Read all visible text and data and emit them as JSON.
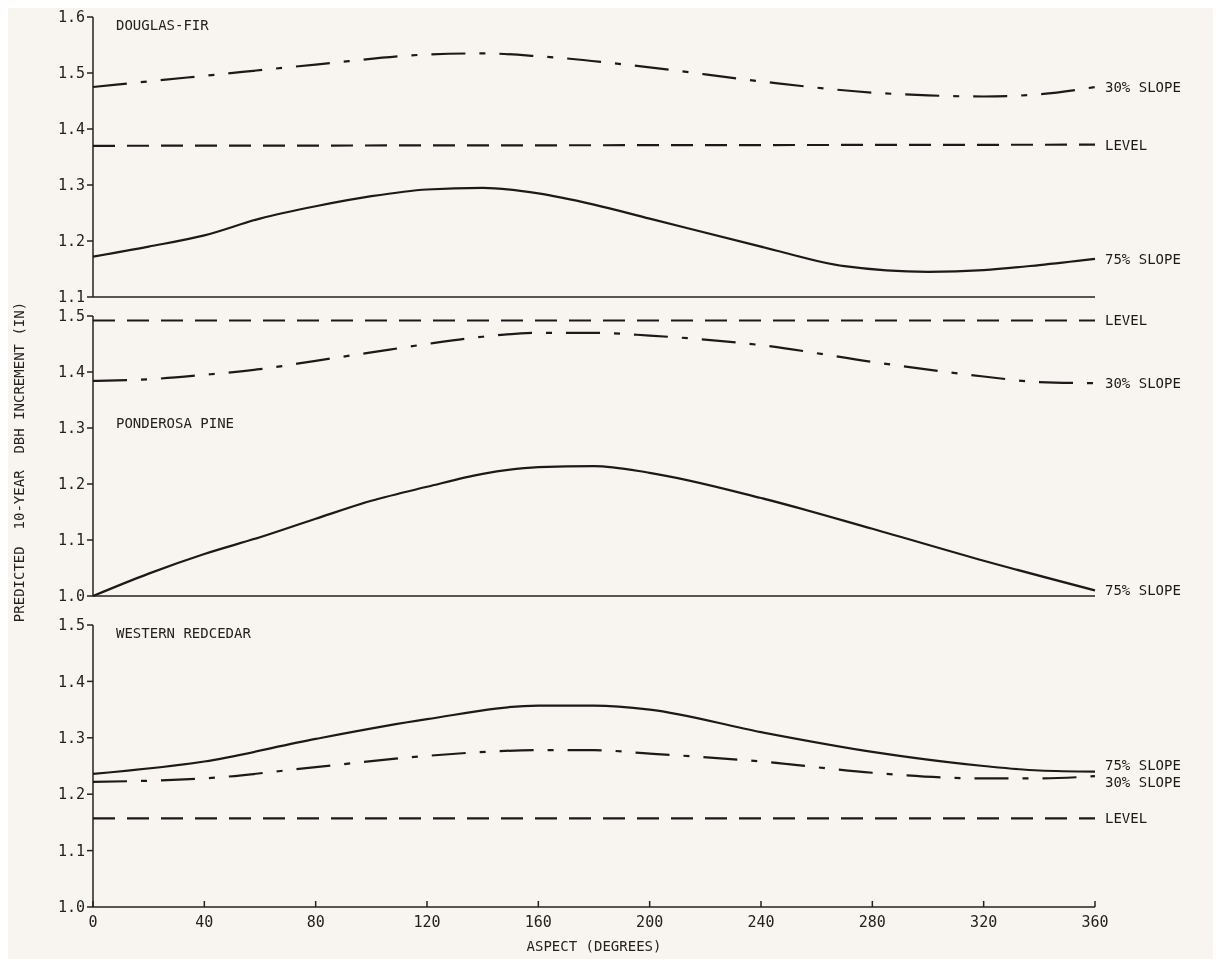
{
  "chart_data": [
    {
      "type": "line",
      "title": "DOUGLAS-FIR",
      "xlim": [
        0,
        360
      ],
      "ylim": [
        1.1,
        1.6
      ],
      "yticks": [
        1.1,
        1.2,
        1.3,
        1.4,
        1.5,
        1.6
      ],
      "xticks": [
        0,
        40,
        80,
        120,
        160,
        200,
        240,
        280,
        320,
        360
      ],
      "tick_labels": "y",
      "legend": false,
      "grid": false,
      "series": [
        {
          "name": "30% SLOPE",
          "color": "#1a1a1a",
          "line_style": "dashdot",
          "x": [
            0,
            40,
            80,
            120,
            140,
            160,
            200,
            240,
            280,
            300,
            320,
            340,
            360
          ],
          "values": [
            1.475,
            1.495,
            1.515,
            1.533,
            1.535,
            1.53,
            1.51,
            1.485,
            1.465,
            1.46,
            1.458,
            1.462,
            1.475
          ]
        },
        {
          "name": "LEVEL",
          "color": "#1a1a1a",
          "line_style": "dashed",
          "x": [
            0,
            360
          ],
          "values": [
            1.37,
            1.372
          ]
        },
        {
          "name": "75% SLOPE",
          "color": "#1a1a1a",
          "line_style": "solid",
          "x": [
            0,
            20,
            40,
            60,
            80,
            100,
            120,
            140,
            160,
            180,
            200,
            240,
            270,
            300,
            320,
            340,
            360
          ],
          "values": [
            1.172,
            1.19,
            1.21,
            1.24,
            1.262,
            1.28,
            1.292,
            1.295,
            1.285,
            1.265,
            1.24,
            1.19,
            1.155,
            1.145,
            1.148,
            1.157,
            1.168
          ]
        }
      ]
    },
    {
      "type": "line",
      "title": "PONDEROSA PINE",
      "ylabel": "PREDICTED  10-YEAR  DBH INCREMENT (IN)",
      "xlim": [
        0,
        360
      ],
      "ylim": [
        1.0,
        1.5
      ],
      "yticks": [
        {
          "value": 1.0,
          "label": "1.0"
        },
        1.1,
        1.2,
        1.3,
        1.4,
        1.5
      ],
      "xticks": [
        0,
        40,
        80,
        120,
        160,
        200,
        240,
        280,
        320,
        360
      ],
      "tick_labels": "y",
      "legend": false,
      "grid": false,
      "series": [
        {
          "name": "LEVEL",
          "color": "#1a1a1a",
          "line_style": "dashed",
          "x": [
            0,
            360
          ],
          "values": [
            1.492,
            1.492
          ]
        },
        {
          "name": "30% SLOPE",
          "color": "#1a1a1a",
          "line_style": "dashdot",
          "x": [
            0,
            20,
            40,
            60,
            80,
            100,
            120,
            140,
            160,
            180,
            200,
            240,
            280,
            320,
            340,
            360
          ],
          "values": [
            1.384,
            1.387,
            1.395,
            1.405,
            1.42,
            1.435,
            1.45,
            1.463,
            1.47,
            1.47,
            1.465,
            1.448,
            1.418,
            1.392,
            1.382,
            1.38
          ]
        },
        {
          "name": "75% SLOPE",
          "color": "#1a1a1a",
          "line_style": "solid",
          "x": [
            0,
            20,
            40,
            60,
            80,
            100,
            120,
            140,
            160,
            180,
            200,
            240,
            280,
            320,
            360
          ],
          "values": [
            1.0,
            1.04,
            1.075,
            1.105,
            1.138,
            1.17,
            1.195,
            1.218,
            1.23,
            1.232,
            1.22,
            1.175,
            1.12,
            1.063,
            1.01
          ]
        }
      ]
    },
    {
      "type": "line",
      "title": "WESTERN REDCEDAR",
      "xlabel": "ASPECT (DEGREES)",
      "xlim": [
        0,
        360
      ],
      "ylim": [
        1.0,
        1.5
      ],
      "yticks": [
        {
          "value": 1.0,
          "label": "1.0"
        },
        1.1,
        1.2,
        1.3,
        1.4,
        1.5
      ],
      "xticks": [
        0,
        40,
        80,
        120,
        160,
        200,
        240,
        280,
        320,
        360
      ],
      "legend": false,
      "grid": false,
      "series": [
        {
          "name": "75% SLOPE",
          "color": "#1a1a1a",
          "line_style": "solid",
          "x": [
            0,
            40,
            80,
            120,
            160,
            180,
            200,
            240,
            280,
            320,
            340,
            360
          ],
          "values": [
            1.236,
            1.258,
            1.298,
            1.333,
            1.357,
            1.357,
            1.35,
            1.31,
            1.275,
            1.25,
            1.242,
            1.24
          ]
        },
        {
          "name": "30% SLOPE",
          "color": "#1a1a1a",
          "line_style": "dashdot",
          "x": [
            0,
            40,
            80,
            120,
            160,
            180,
            200,
            240,
            280,
            320,
            340,
            360
          ],
          "values": [
            1.222,
            1.228,
            1.248,
            1.268,
            1.278,
            1.278,
            1.272,
            1.258,
            1.238,
            1.228,
            1.228,
            1.232
          ]
        },
        {
          "name": "LEVEL",
          "color": "#1a1a1a",
          "line_style": "dashed",
          "x": [
            0,
            360
          ],
          "values": [
            1.157,
            1.157
          ]
        }
      ]
    }
  ]
}
